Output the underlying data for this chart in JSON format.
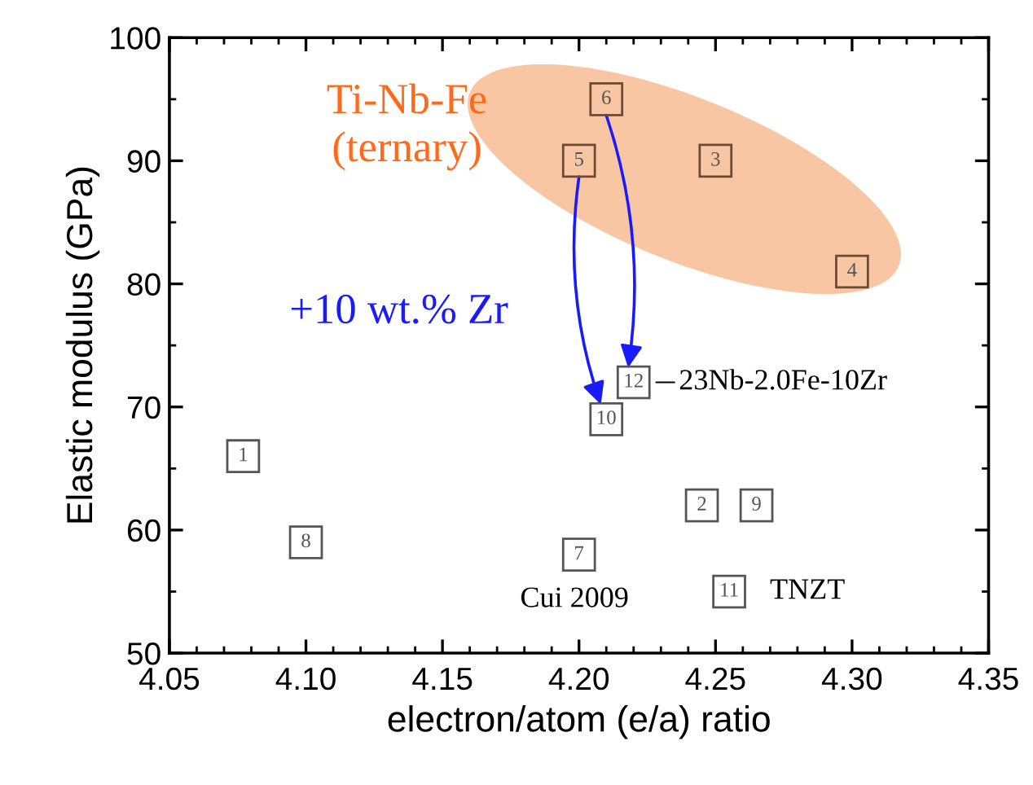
{
  "chart_data": {
    "type": "scatter",
    "xlabel": "electron/atom (e/a) ratio",
    "ylabel": "Elastic modulus (GPa)",
    "xlim": [
      4.05,
      4.35
    ],
    "xticks": [
      {
        "value": 4.05,
        "label": "4.05"
      },
      {
        "value": 4.1,
        "label": "4.10"
      },
      {
        "value": 4.15,
        "label": "4.15"
      },
      {
        "value": 4.2,
        "label": "4.20"
      },
      {
        "value": 4.25,
        "label": "4.25"
      },
      {
        "value": 4.3,
        "label": "4.30"
      },
      {
        "value": 4.35,
        "label": "4.35"
      }
    ],
    "ylim": [
      50,
      100
    ],
    "yticks": [
      50,
      60,
      70,
      80,
      90,
      100
    ],
    "grid": false,
    "marker": "square",
    "series": [
      {
        "color": "#555555",
        "x": [
          4.077,
          4.245,
          4.25,
          4.3,
          4.2,
          4.21,
          4.2,
          4.1,
          4.265,
          4.21,
          4.255,
          4.22
        ],
        "values": [
          66,
          62,
          90,
          81,
          90,
          95,
          58,
          59,
          62,
          69,
          55,
          72
        ],
        "colors": [
          "#555555",
          "#555555",
          "#6b4a35",
          "#6b4a35",
          "#6b4a35",
          "#6b4a35",
          "#555555",
          "#555555",
          "#555555",
          "#555555",
          "#555555",
          "#555555"
        ]
      }
    ],
    "annotations": [
      "Ti-Nb-Fe\n(ternary)",
      "+10 wt.% Zr",
      {
        "text": "23Nb-2.0Fe-10Zr",
        "x": 4.22,
        "y": 72
      },
      {
        "text": "Cui 2009",
        "x": 4.2,
        "y": 58
      },
      {
        "text": "TNZT",
        "x": 4.255,
        "y": 55
      },
      {
        "text": "1",
        "x": 4.077,
        "y": 66
      },
      {
        "text": "2",
        "x": 4.245,
        "y": 62
      },
      {
        "text": "3",
        "x": 4.25,
        "y": 90
      },
      {
        "text": "4",
        "x": 4.3,
        "y": 81
      },
      {
        "text": "5",
        "x": 4.2,
        "y": 90
      },
      {
        "text": "6",
        "x": 4.21,
        "y": 95
      },
      {
        "text": "7",
        "x": 4.2,
        "y": 58
      },
      {
        "text": "8",
        "x": 4.1,
        "y": 59
      },
      {
        "text": "9",
        "x": 4.265,
        "y": 62
      },
      {
        "text": "10",
        "x": 4.21,
        "y": 69
      },
      {
        "text": "11",
        "x": 4.255,
        "y": 55
      },
      {
        "text": "12",
        "x": 4.22,
        "y": 72
      }
    ]
  }
}
